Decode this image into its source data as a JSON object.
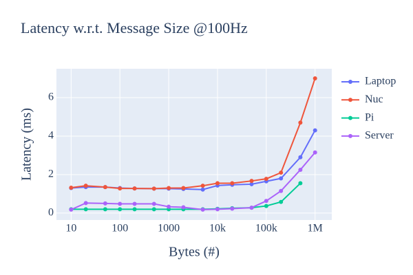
{
  "chart_data": {
    "type": "line",
    "title": "Latency w.r.t. Message Size @100Hz",
    "x_label": "Bytes (#)",
    "y_label": "Latency (ms)",
    "x": [
      10,
      20,
      50,
      100,
      200,
      500,
      1000,
      2000,
      5000,
      10000,
      20000,
      50000,
      100000,
      200000,
      500000,
      1000000
    ],
    "xscale": "log",
    "series": [
      {
        "name": "Laptop",
        "color": "#636efa",
        "values": [
          1.3,
          1.35,
          1.35,
          1.3,
          1.28,
          1.27,
          1.27,
          1.25,
          1.22,
          1.43,
          1.47,
          1.5,
          1.65,
          1.8,
          2.9,
          4.3
        ]
      },
      {
        "name": "Nuc",
        "color": "#EF553B",
        "values": [
          1.32,
          1.42,
          1.35,
          1.28,
          1.28,
          1.27,
          1.3,
          1.3,
          1.42,
          1.55,
          1.55,
          1.67,
          1.78,
          2.1,
          4.7,
          7.0
        ]
      },
      {
        "name": "Pi",
        "color": "#00cc96",
        "values": [
          0.2,
          0.2,
          0.2,
          0.2,
          0.2,
          0.2,
          0.2,
          0.2,
          0.2,
          0.22,
          0.25,
          0.28,
          0.37,
          0.58,
          1.55,
          null
        ]
      },
      {
        "name": "Server",
        "color": "#ab63fa",
        "values": [
          0.18,
          0.52,
          0.5,
          0.48,
          0.48,
          0.48,
          0.33,
          0.3,
          0.18,
          0.2,
          0.23,
          0.28,
          0.63,
          1.15,
          2.25,
          3.15
        ]
      }
    ],
    "xlim": [
      5,
      2200000
    ],
    "ylim": [
      -0.36,
      7.5
    ],
    "xticks": [
      10,
      100,
      1000,
      {
        "value": 10000,
        "label": "10k"
      },
      {
        "value": 100000,
        "label": "100k"
      },
      {
        "value": 1000000,
        "label": "1M"
      }
    ],
    "yticks": [
      0,
      2,
      4,
      6
    ],
    "grid": true,
    "legend": "right"
  }
}
